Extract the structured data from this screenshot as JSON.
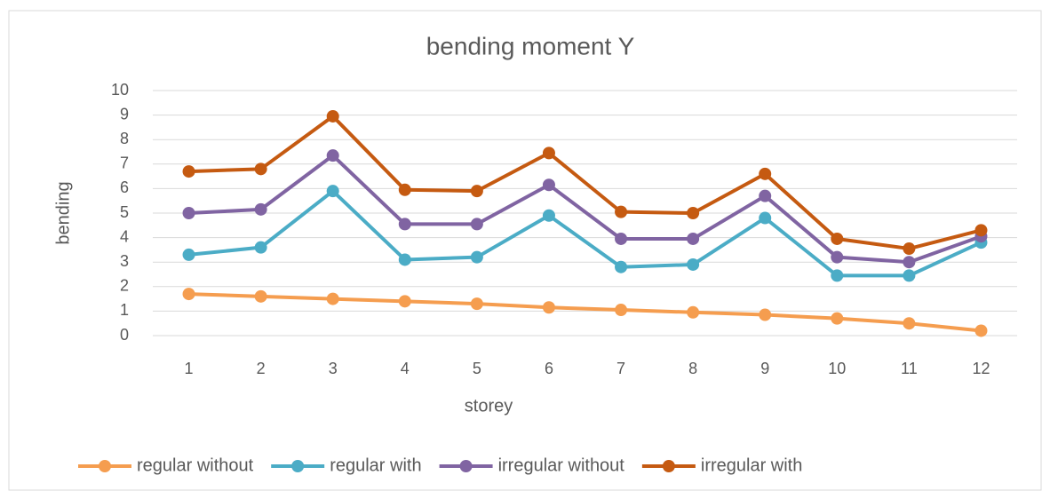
{
  "chart_data": {
    "type": "line",
    "title": "bending moment Y",
    "x_label": "storey",
    "y_label": "bending",
    "categories": [
      "1",
      "2",
      "3",
      "4",
      "5",
      "6",
      "7",
      "8",
      "9",
      "10",
      "11",
      "12"
    ],
    "series": [
      {
        "name": "regular without",
        "color": "#f59d4f",
        "values": [
          1.7,
          1.6,
          1.5,
          1.4,
          1.3,
          1.15,
          1.05,
          0.95,
          0.85,
          0.7,
          0.5,
          0.2
        ]
      },
      {
        "name": "regular with",
        "color": "#4bacc6",
        "values": [
          3.3,
          3.6,
          5.9,
          3.1,
          3.2,
          4.9,
          2.8,
          2.9,
          4.8,
          2.45,
          2.45,
          3.8
        ]
      },
      {
        "name": "irregular without",
        "color": "#8064a2",
        "values": [
          5.0,
          5.15,
          7.35,
          4.55,
          4.55,
          6.15,
          3.95,
          3.95,
          5.7,
          3.2,
          3.0,
          4.05
        ]
      },
      {
        "name": "irregular with",
        "color": "#c55a11",
        "values": [
          6.7,
          6.8,
          8.95,
          5.95,
          5.9,
          7.45,
          5.05,
          5.0,
          6.6,
          3.95,
          3.55,
          4.3
        ]
      }
    ],
    "ylim": [
      0,
      10
    ],
    "yticks": [
      0,
      1,
      2,
      3,
      4,
      5,
      6,
      7,
      8,
      9,
      10
    ],
    "grid": true,
    "legend": "bottom"
  }
}
